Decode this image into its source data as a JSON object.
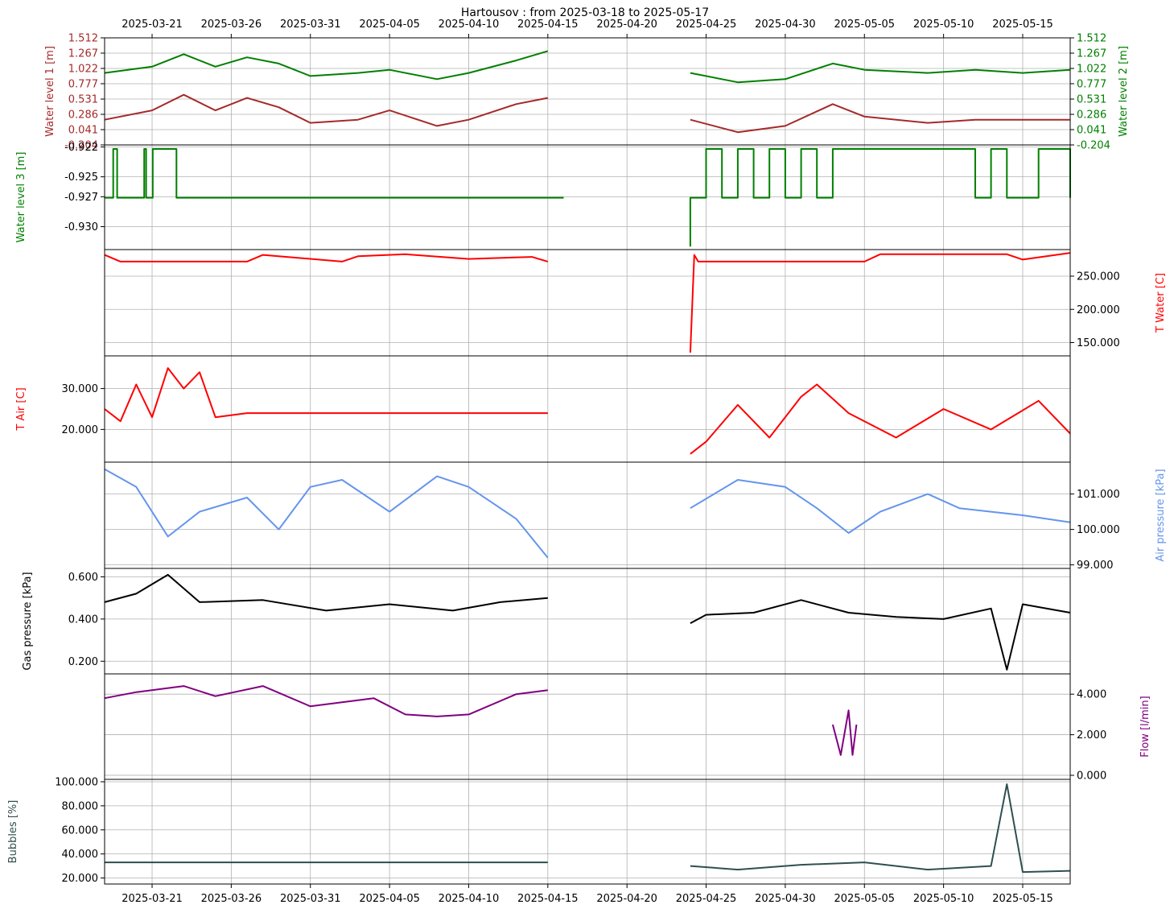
{
  "chart_data": {
    "type": "line",
    "title": "Hartousov : from 2025-03-18 to 2025-05-17",
    "x_range": [
      "2025-03-18",
      "2025-05-18"
    ],
    "x_ticks": [
      "2025-03-21",
      "2025-03-26",
      "2025-03-31",
      "2025-04-05",
      "2025-04-10",
      "2025-04-15",
      "2025-04-20",
      "2025-04-25",
      "2025-04-30",
      "2025-05-05",
      "2025-05-10",
      "2025-05-15"
    ],
    "data_gap": [
      "2025-04-15",
      "2025-04-24"
    ],
    "grid": true,
    "panels": [
      {
        "id": "water-level-1-2",
        "ylim": [
          -0.204,
          1.512
        ],
        "y_ticks_left": [
          "1.512",
          "1.267",
          "1.022",
          "0.777",
          "0.531",
          "0.286",
          "0.041",
          "-0.204"
        ],
        "y_ticks_right": [
          "1.512",
          "1.267",
          "1.022",
          "0.777",
          "0.531",
          "0.286",
          "0.041",
          "-0.204"
        ],
        "ylabel_left": "Water level 1 [m]",
        "ylabel_right": "Water level 2 [m]",
        "color_left": "#a52a2a",
        "color_right": "#008000",
        "series": [
          {
            "name": "Water level 2 [m]",
            "color": "#008000",
            "x": [
              "2025-03-18",
              "2025-03-21",
              "2025-03-23",
              "2025-03-25",
              "2025-03-27",
              "2025-03-29",
              "2025-03-31",
              "2025-04-03",
              "2025-04-05",
              "2025-04-08",
              "2025-04-10",
              "2025-04-13",
              "2025-04-15",
              "2025-04-24",
              "2025-04-27",
              "2025-04-30",
              "2025-05-03",
              "2025-05-05",
              "2025-05-09",
              "2025-05-12",
              "2025-05-15",
              "2025-05-18"
            ],
            "values": [
              0.95,
              1.05,
              1.25,
              1.05,
              1.2,
              1.1,
              0.9,
              0.95,
              1.0,
              0.85,
              0.95,
              1.15,
              1.3,
              0.95,
              0.8,
              0.85,
              1.1,
              1.0,
              0.95,
              1.0,
              0.95,
              1.0
            ]
          },
          {
            "name": "Water level 1 [m]",
            "color": "#a52a2a",
            "x": [
              "2025-03-18",
              "2025-03-21",
              "2025-03-23",
              "2025-03-25",
              "2025-03-27",
              "2025-03-29",
              "2025-03-31",
              "2025-04-03",
              "2025-04-05",
              "2025-04-08",
              "2025-04-10",
              "2025-04-13",
              "2025-04-15",
              "2025-04-24",
              "2025-04-27",
              "2025-04-30",
              "2025-05-03",
              "2025-05-05",
              "2025-05-09",
              "2025-05-12",
              "2025-05-15",
              "2025-05-18"
            ],
            "values": [
              0.2,
              0.35,
              0.6,
              0.35,
              0.55,
              0.4,
              0.15,
              0.2,
              0.35,
              0.1,
              0.2,
              0.45,
              0.55,
              0.2,
              0.0,
              0.1,
              0.45,
              0.25,
              0.15,
              0.2,
              0.2,
              0.2
            ]
          }
        ]
      },
      {
        "id": "water-level-3",
        "ylim": [
          -0.9323,
          -0.9218
        ],
        "y_ticks_left": [
          "-0.922",
          "-0.925",
          "-0.927",
          "-0.930"
        ],
        "ylabel_left": "Water level 3 [m]",
        "color_left": "#008000",
        "series": [
          {
            "name": "Water level 3 [m]",
            "color": "#008000",
            "step": true,
            "x": [
              "2025-03-18",
              "2025-03-18T12:00",
              "2025-03-18T13:00",
              "2025-03-18T18:00",
              "2025-03-18T19:00",
              "2025-03-20",
              "2025-03-20T12:00",
              "2025-03-20T12:00",
              "2025-03-20T14:00",
              "2025-03-20T15:00",
              "2025-03-21",
              "2025-03-21T01:00",
              "2025-03-22T12:00",
              "2025-03-22T13:00",
              "2025-04-16",
              "2025-04-24",
              "2025-04-24",
              "2025-04-25",
              "2025-04-26",
              "2025-04-27",
              "2025-04-28",
              "2025-04-29",
              "2025-04-30",
              "2025-05-01",
              "2025-05-02",
              "2025-05-03",
              "2025-05-12",
              "2025-05-13",
              "2025-05-14",
              "2025-05-16",
              "2025-05-18"
            ],
            "values": [
              -0.9271,
              -0.9271,
              -0.9222,
              -0.9222,
              -0.9271,
              -0.9271,
              -0.9222,
              -0.9222,
              -0.9222,
              -0.9271,
              -0.9271,
              -0.9222,
              -0.9222,
              -0.9271,
              -0.9271,
              -0.932,
              -0.9271,
              -0.9222,
              -0.9271,
              -0.9222,
              -0.9271,
              -0.9222,
              -0.9271,
              -0.9222,
              -0.9271,
              -0.9222,
              -0.9271,
              -0.9222,
              -0.9271,
              -0.9222,
              -0.9271
            ]
          }
        ]
      },
      {
        "id": "t-water",
        "ylim": [
          130,
          290
        ],
        "y_ticks_right": [
          "250.000",
          "200.000",
          "150.000"
        ],
        "ylabel_right": "T Water [C]",
        "color_right": "#ff0000",
        "series": [
          {
            "name": "T Water [C]",
            "color": "#ff0000",
            "x": [
              "2025-03-18",
              "2025-03-19",
              "2025-03-20",
              "2025-03-27",
              "2025-03-28",
              "2025-04-02",
              "2025-04-03",
              "2025-04-06",
              "2025-04-10",
              "2025-04-14",
              "2025-04-15",
              "2025-04-24",
              "2025-04-24T06:00",
              "2025-04-24T12:00",
              "2025-05-05",
              "2025-05-06",
              "2025-05-14",
              "2025-05-15",
              "2025-05-18"
            ],
            "values": [
              282,
              272,
              272,
              272,
              282,
              272,
              280,
              283,
              276,
              279,
              272,
              135,
              282,
              272,
              272,
              283,
              283,
              275,
              285
            ]
          }
        ]
      },
      {
        "id": "t-air",
        "ylim": [
          12,
          38
        ],
        "y_ticks_left": [
          "30.000",
          "20.000"
        ],
        "ylabel_left": "T Air [C]",
        "color_left": "#ff0000",
        "series": [
          {
            "name": "T Air [C]",
            "color": "#ff0000",
            "x": [
              "2025-03-18",
              "2025-03-19",
              "2025-03-20",
              "2025-03-21",
              "2025-03-22",
              "2025-03-23",
              "2025-03-24",
              "2025-03-25",
              "2025-03-27",
              "2025-04-05",
              "2025-04-15",
              "2025-04-24",
              "2025-04-25",
              "2025-04-27",
              "2025-04-29",
              "2025-05-01",
              "2025-05-02",
              "2025-05-04",
              "2025-05-07",
              "2025-05-10",
              "2025-05-13",
              "2025-05-16",
              "2025-05-18"
            ],
            "values": [
              25,
              22,
              31,
              23,
              35,
              30,
              34,
              23,
              24,
              24,
              24,
              14,
              17,
              26,
              18,
              28,
              31,
              24,
              18,
              25,
              20,
              27,
              19
            ]
          }
        ]
      },
      {
        "id": "air-pressure",
        "ylim": [
          98.9,
          101.9
        ],
        "y_ticks_right": [
          "101.000",
          "100.000",
          "99.000"
        ],
        "ylabel_right": "Air pressure [kPa]",
        "color_right": "#6495ed",
        "series": [
          {
            "name": "Air pressure [kPa]",
            "color": "#6495ed",
            "x": [
              "2025-03-18",
              "2025-03-20",
              "2025-03-22",
              "2025-03-24",
              "2025-03-27",
              "2025-03-29",
              "2025-03-31",
              "2025-04-02",
              "2025-04-05",
              "2025-04-08",
              "2025-04-10",
              "2025-04-13",
              "2025-04-15",
              "2025-04-24",
              "2025-04-27",
              "2025-04-30",
              "2025-05-02",
              "2025-05-04",
              "2025-05-06",
              "2025-05-09",
              "2025-05-11",
              "2025-05-13",
              "2025-05-15",
              "2025-05-18"
            ],
            "values": [
              101.7,
              101.2,
              99.8,
              100.5,
              100.9,
              100.0,
              101.2,
              101.4,
              100.5,
              101.5,
              101.2,
              100.3,
              99.2,
              100.6,
              101.4,
              101.2,
              100.6,
              99.9,
              100.5,
              101.0,
              100.6,
              100.5,
              100.4,
              100.2
            ]
          }
        ]
      },
      {
        "id": "gas-pressure",
        "ylim": [
          0.14,
          0.64
        ],
        "y_ticks_left": [
          "0.600",
          "0.400",
          "0.200"
        ],
        "ylabel_left": "Gas pressure [kPa]",
        "color_left": "#000000",
        "series": [
          {
            "name": "Gas pressure [kPa]",
            "color": "#000000",
            "x": [
              "2025-03-18",
              "2025-03-20",
              "2025-03-22",
              "2025-03-24",
              "2025-03-28",
              "2025-04-01",
              "2025-04-05",
              "2025-04-09",
              "2025-04-12",
              "2025-04-15",
              "2025-04-24",
              "2025-04-25",
              "2025-04-28",
              "2025-05-01",
              "2025-05-04",
              "2025-05-07",
              "2025-05-10",
              "2025-05-13",
              "2025-05-14",
              "2025-05-15",
              "2025-05-18"
            ],
            "values": [
              0.48,
              0.52,
              0.61,
              0.48,
              0.49,
              0.44,
              0.47,
              0.44,
              0.48,
              0.5,
              0.38,
              0.42,
              0.43,
              0.49,
              0.43,
              0.41,
              0.4,
              0.45,
              0.16,
              0.47,
              0.43
            ]
          }
        ]
      },
      {
        "id": "flow",
        "ylim": [
          -0.2,
          5.0
        ],
        "y_ticks_right": [
          "4.000",
          "2.000",
          "0.000"
        ],
        "ylabel_right": "Flow [l/min]",
        "color_right": "#800080",
        "series": [
          {
            "name": "Flow [l/min]",
            "color": "#800080",
            "x": [
              "2025-03-18",
              "2025-03-20",
              "2025-03-23",
              "2025-03-25",
              "2025-03-28",
              "2025-03-31",
              "2025-04-04",
              "2025-04-06",
              "2025-04-08",
              "2025-04-10",
              "2025-04-13",
              "2025-04-15",
              "2025-05-03",
              "2025-05-03T12:00",
              "2025-05-04",
              "2025-05-04T06:00",
              "2025-05-04T12:00"
            ],
            "values": [
              3.8,
              4.1,
              4.4,
              3.9,
              4.4,
              3.4,
              3.8,
              3.0,
              2.9,
              3.0,
              4.0,
              4.2,
              2.5,
              1.0,
              3.2,
              1.0,
              2.5
            ]
          }
        ]
      },
      {
        "id": "bubbles",
        "ylim": [
          15,
          102
        ],
        "y_ticks_left": [
          "100.000",
          "80.000",
          "60.000",
          "40.000",
          "20.000"
        ],
        "ylabel_left": "Bubbles [%]",
        "color_left": "#2f4f4f",
        "series": [
          {
            "name": "Bubbles [%]",
            "color": "#2f4f4f",
            "x": [
              "2025-03-18",
              "2025-03-25",
              "2025-04-01",
              "2025-04-08",
              "2025-04-15",
              "2025-04-24",
              "2025-04-27",
              "2025-05-01",
              "2025-05-05",
              "2025-05-09",
              "2025-05-13",
              "2025-05-14",
              "2025-05-15",
              "2025-05-18"
            ],
            "values": [
              33,
              33,
              33,
              33,
              33,
              30,
              27,
              31,
              33,
              27,
              30,
              98,
              25,
              26
            ]
          }
        ]
      }
    ]
  }
}
